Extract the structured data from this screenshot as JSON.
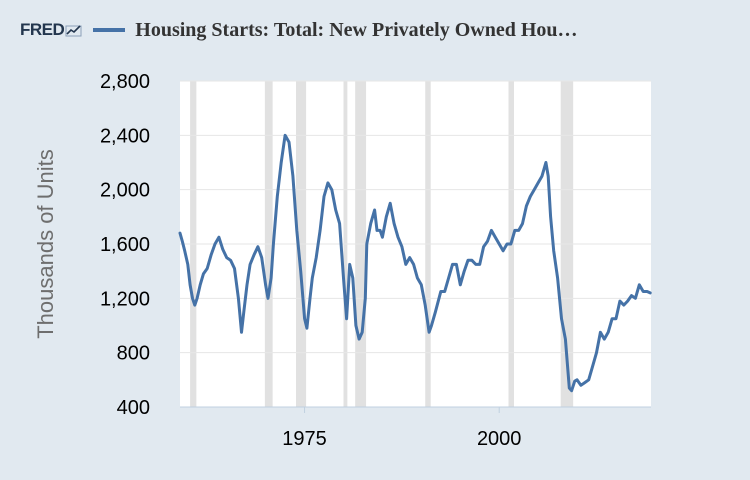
{
  "header": {
    "logo_text": "FRED",
    "title": "Housing Starts: Total: New Privately Owned Hou…"
  },
  "colors": {
    "page_background": "#e1e9f0",
    "plot_background": "#ffffff",
    "series": "#4572a7",
    "recession": "#e1e1e1",
    "grid": "#e6e6e6"
  },
  "chart_data": {
    "type": "line",
    "title": "Housing Starts: Total: New Privately Owned Hou…",
    "xlabel": "",
    "ylabel": "Thousands of Units",
    "xlim": [
      1959,
      2019.5
    ],
    "ylim": [
      400,
      2800
    ],
    "y_ticks": [
      400,
      800,
      1200,
      1600,
      2000,
      2400,
      2800
    ],
    "y_tick_labels": [
      "400",
      "800",
      "1,200",
      "1,600",
      "2,000",
      "2,400",
      "2,800"
    ],
    "x_ticks": [
      1975,
      2000
    ],
    "x_tick_labels": [
      "1975",
      "2000"
    ],
    "grid": true,
    "recessions": [
      [
        1960.3,
        1961.1
      ],
      [
        1969.9,
        1970.9
      ],
      [
        1973.9,
        1975.2
      ],
      [
        1980.0,
        1980.5
      ],
      [
        1981.5,
        1982.9
      ],
      [
        1990.5,
        1991.2
      ],
      [
        2001.2,
        2001.9
      ],
      [
        2007.9,
        2009.5
      ]
    ],
    "series": [
      {
        "name": "Housing Starts: Total: New Privately Owned Housing Units Started",
        "points": [
          [
            1959.0,
            1680
          ],
          [
            1959.3,
            1620
          ],
          [
            1959.6,
            1550
          ],
          [
            1960.0,
            1450
          ],
          [
            1960.3,
            1300
          ],
          [
            1960.6,
            1200
          ],
          [
            1960.9,
            1150
          ],
          [
            1961.2,
            1200
          ],
          [
            1961.6,
            1300
          ],
          [
            1962.0,
            1380
          ],
          [
            1962.5,
            1420
          ],
          [
            1963.0,
            1520
          ],
          [
            1963.5,
            1600
          ],
          [
            1964.0,
            1650
          ],
          [
            1964.5,
            1560
          ],
          [
            1965.0,
            1500
          ],
          [
            1965.5,
            1480
          ],
          [
            1966.0,
            1420
          ],
          [
            1966.5,
            1200
          ],
          [
            1966.9,
            950
          ],
          [
            1967.2,
            1100
          ],
          [
            1967.6,
            1300
          ],
          [
            1968.0,
            1450
          ],
          [
            1968.5,
            1520
          ],
          [
            1969.0,
            1580
          ],
          [
            1969.5,
            1500
          ],
          [
            1970.0,
            1300
          ],
          [
            1970.3,
            1200
          ],
          [
            1970.7,
            1350
          ],
          [
            1971.0,
            1600
          ],
          [
            1971.5,
            1950
          ],
          [
            1972.0,
            2200
          ],
          [
            1972.5,
            2400
          ],
          [
            1973.0,
            2350
          ],
          [
            1973.5,
            2100
          ],
          [
            1974.0,
            1700
          ],
          [
            1974.5,
            1400
          ],
          [
            1975.0,
            1050
          ],
          [
            1975.3,
            980
          ],
          [
            1975.7,
            1200
          ],
          [
            1976.0,
            1350
          ],
          [
            1976.5,
            1500
          ],
          [
            1977.0,
            1700
          ],
          [
            1977.5,
            1950
          ],
          [
            1978.0,
            2050
          ],
          [
            1978.5,
            2000
          ],
          [
            1979.0,
            1850
          ],
          [
            1979.5,
            1750
          ],
          [
            1980.0,
            1350
          ],
          [
            1980.4,
            1050
          ],
          [
            1980.8,
            1450
          ],
          [
            1981.2,
            1350
          ],
          [
            1981.6,
            1000
          ],
          [
            1982.0,
            900
          ],
          [
            1982.4,
            950
          ],
          [
            1982.8,
            1200
          ],
          [
            1983.0,
            1600
          ],
          [
            1983.5,
            1750
          ],
          [
            1984.0,
            1850
          ],
          [
            1984.3,
            1700
          ],
          [
            1984.7,
            1700
          ],
          [
            1985.0,
            1650
          ],
          [
            1985.5,
            1800
          ],
          [
            1986.0,
            1900
          ],
          [
            1986.5,
            1750
          ],
          [
            1987.0,
            1650
          ],
          [
            1987.5,
            1580
          ],
          [
            1988.0,
            1450
          ],
          [
            1988.5,
            1500
          ],
          [
            1989.0,
            1450
          ],
          [
            1989.5,
            1350
          ],
          [
            1990.0,
            1300
          ],
          [
            1990.5,
            1150
          ],
          [
            1991.0,
            950
          ],
          [
            1991.3,
            1000
          ],
          [
            1991.8,
            1100
          ],
          [
            1992.5,
            1250
          ],
          [
            1993.0,
            1250
          ],
          [
            1993.5,
            1350
          ],
          [
            1994.0,
            1450
          ],
          [
            1994.5,
            1450
          ],
          [
            1995.0,
            1300
          ],
          [
            1995.5,
            1400
          ],
          [
            1996.0,
            1480
          ],
          [
            1996.5,
            1480
          ],
          [
            1997.0,
            1450
          ],
          [
            1997.5,
            1450
          ],
          [
            1998.0,
            1580
          ],
          [
            1998.5,
            1620
          ],
          [
            1999.0,
            1700
          ],
          [
            1999.5,
            1650
          ],
          [
            2000.0,
            1600
          ],
          [
            2000.5,
            1550
          ],
          [
            2001.0,
            1600
          ],
          [
            2001.5,
            1600
          ],
          [
            2002.0,
            1700
          ],
          [
            2002.5,
            1700
          ],
          [
            2003.0,
            1750
          ],
          [
            2003.5,
            1880
          ],
          [
            2004.0,
            1950
          ],
          [
            2004.5,
            2000
          ],
          [
            2005.0,
            2050
          ],
          [
            2005.5,
            2100
          ],
          [
            2006.0,
            2200
          ],
          [
            2006.3,
            2100
          ],
          [
            2006.6,
            1800
          ],
          [
            2007.0,
            1550
          ],
          [
            2007.5,
            1350
          ],
          [
            2008.0,
            1050
          ],
          [
            2008.5,
            900
          ],
          [
            2009.0,
            540
          ],
          [
            2009.3,
            520
          ],
          [
            2009.7,
            590
          ],
          [
            2010.0,
            600
          ],
          [
            2010.5,
            560
          ],
          [
            2011.0,
            580
          ],
          [
            2011.5,
            600
          ],
          [
            2012.0,
            700
          ],
          [
            2012.5,
            800
          ],
          [
            2013.0,
            950
          ],
          [
            2013.5,
            900
          ],
          [
            2014.0,
            950
          ],
          [
            2014.5,
            1050
          ],
          [
            2015.0,
            1050
          ],
          [
            2015.5,
            1180
          ],
          [
            2016.0,
            1150
          ],
          [
            2016.5,
            1180
          ],
          [
            2017.0,
            1220
          ],
          [
            2017.5,
            1200
          ],
          [
            2018.0,
            1300
          ],
          [
            2018.5,
            1250
          ],
          [
            2019.0,
            1250
          ],
          [
            2019.4,
            1240
          ]
        ]
      }
    ]
  }
}
